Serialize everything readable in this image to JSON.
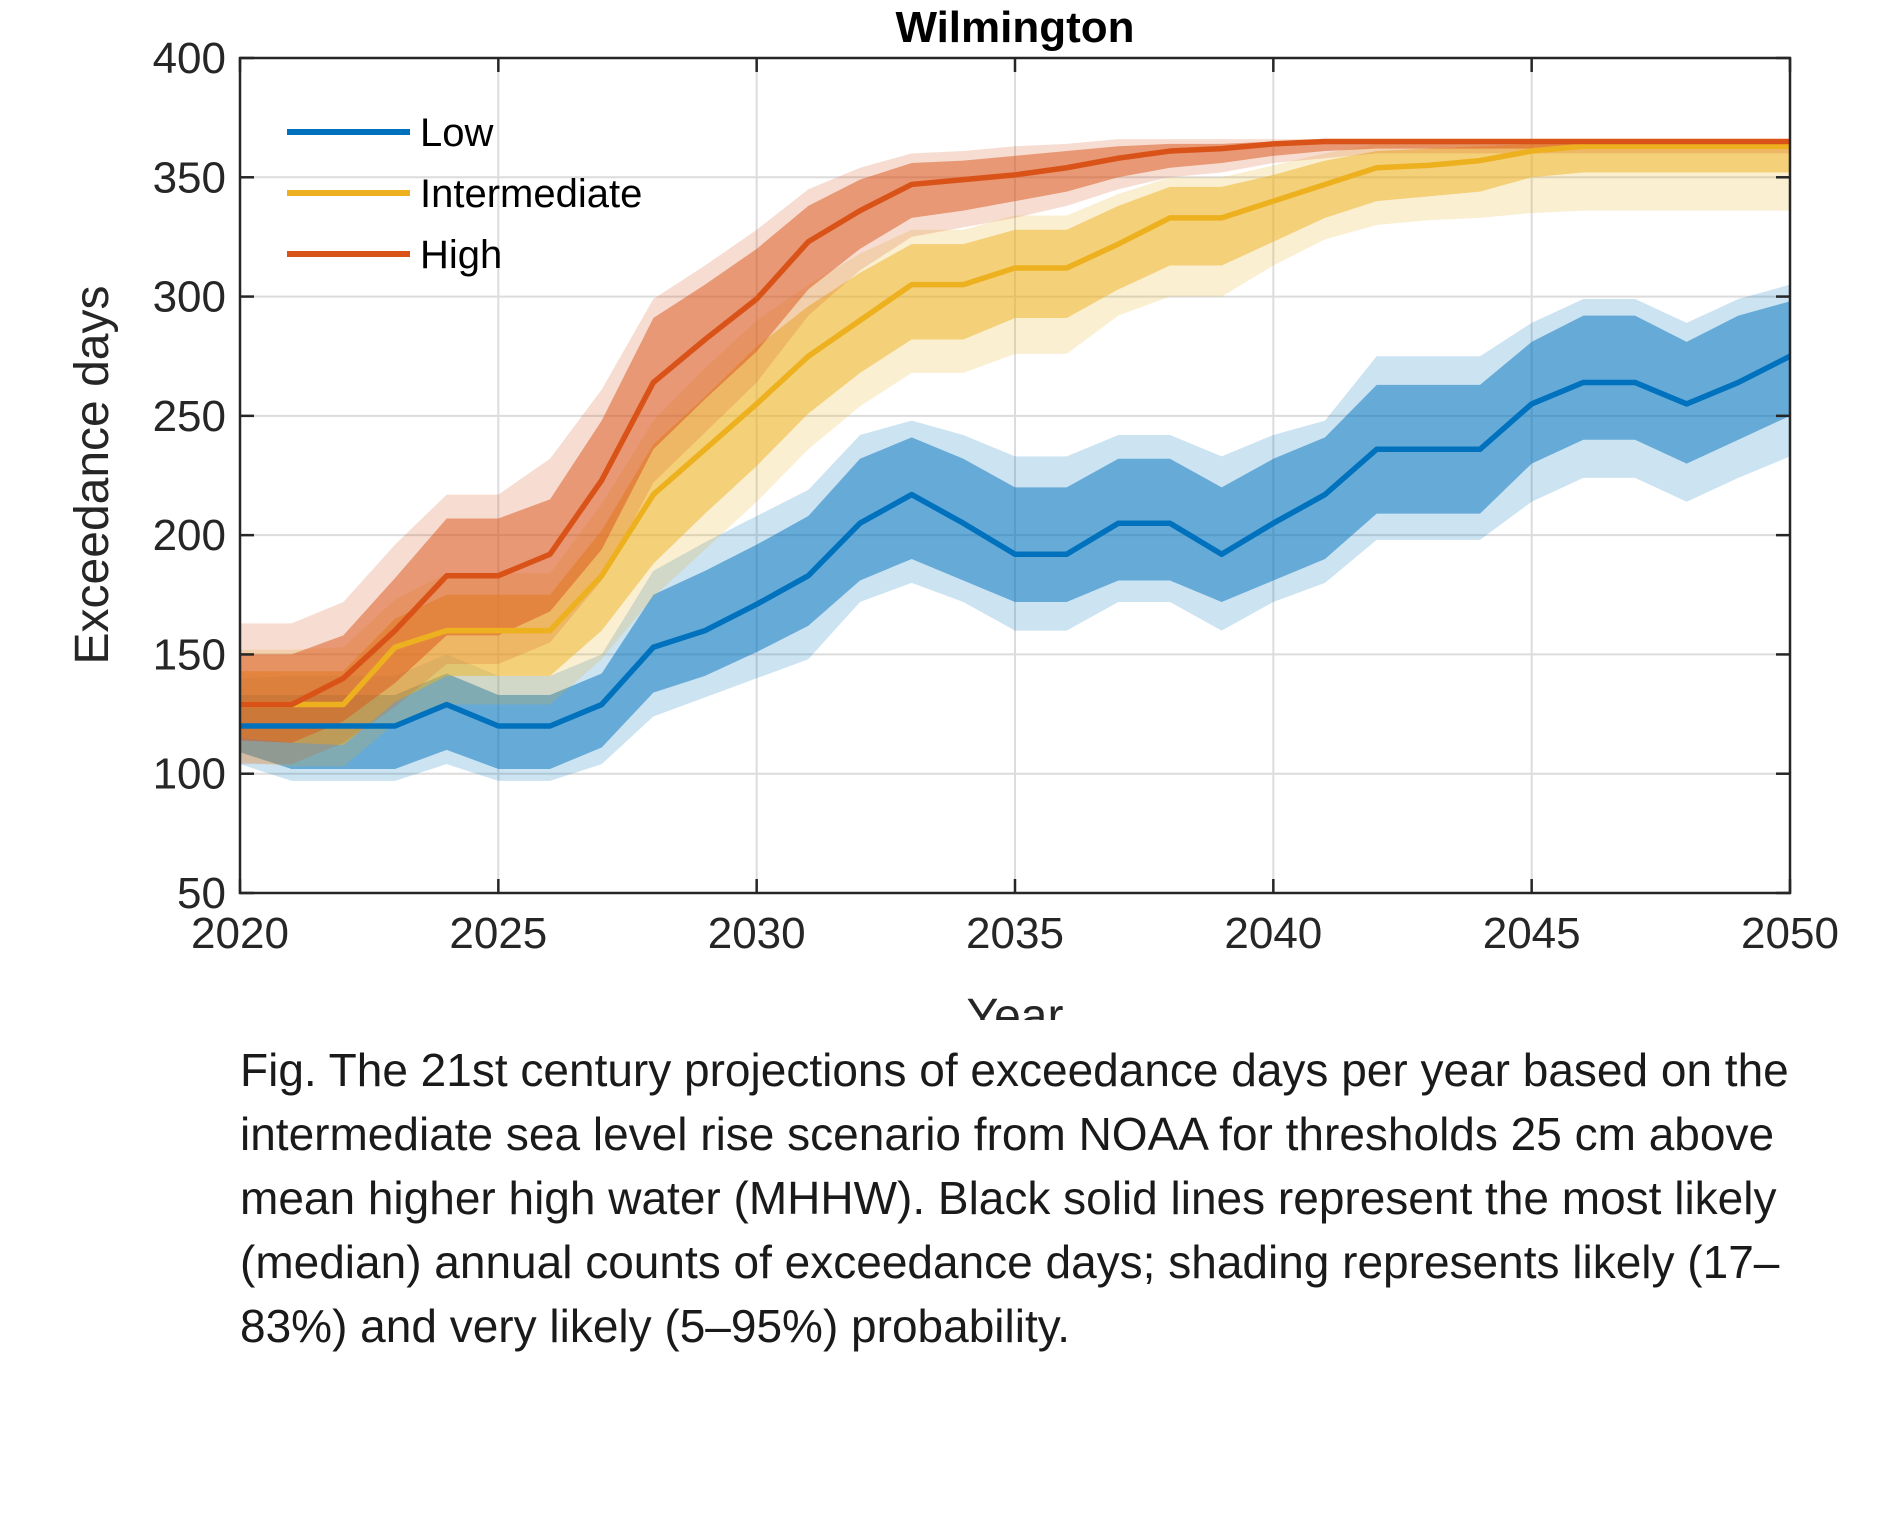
{
  "chart_data": {
    "type": "area",
    "title": "Wilmington",
    "xlabel": "Year",
    "ylabel": "Exceedance days",
    "xlim": [
      2020,
      2050
    ],
    "ylim": [
      50,
      400
    ],
    "xticks": [
      2020,
      2025,
      2030,
      2035,
      2040,
      2045,
      2050
    ],
    "yticks": [
      50,
      100,
      150,
      200,
      250,
      300,
      350,
      400
    ],
    "grid": true,
    "legend_position": "top-left",
    "x": [
      2020,
      2021,
      2022,
      2023,
      2024,
      2025,
      2026,
      2027,
      2028,
      2029,
      2030,
      2031,
      2032,
      2033,
      2034,
      2035,
      2036,
      2037,
      2038,
      2039,
      2040,
      2041,
      2042,
      2043,
      2044,
      2045,
      2046,
      2047,
      2048,
      2049,
      2050
    ],
    "series": [
      {
        "name": "Low",
        "color": "#0072BD",
        "median": [
          120,
          120,
          120,
          120,
          129,
          120,
          120,
          129,
          153,
          160,
          171,
          183,
          205,
          217,
          205,
          192,
          192,
          205,
          205,
          192,
          205,
          217,
          236,
          236,
          236,
          255,
          264,
          264,
          255,
          264,
          275
        ],
        "likely_low": [
          109,
          102,
          102,
          102,
          110,
          102,
          102,
          111,
          134,
          141,
          151,
          162,
          181,
          190,
          181,
          172,
          172,
          181,
          181,
          172,
          181,
          190,
          209,
          209,
          209,
          230,
          240,
          240,
          230,
          240,
          250
        ],
        "likely_high": [
          133,
          133,
          133,
          133,
          142,
          133,
          133,
          142,
          175,
          185,
          196,
          208,
          232,
          241,
          232,
          220,
          220,
          232,
          232,
          220,
          232,
          241,
          263,
          263,
          263,
          281,
          292,
          292,
          281,
          292,
          298
        ],
        "very_likely_low": [
          104,
          97,
          97,
          97,
          104,
          97,
          97,
          104,
          124,
          132,
          140,
          148,
          172,
          180,
          172,
          160,
          160,
          172,
          172,
          160,
          172,
          180,
          198,
          198,
          198,
          214,
          224,
          224,
          214,
          224,
          233
        ],
        "very_likely_high": [
          140,
          141,
          141,
          141,
          150,
          141,
          141,
          150,
          185,
          197,
          208,
          219,
          242,
          248,
          242,
          233,
          233,
          242,
          242,
          233,
          242,
          248,
          275,
          275,
          275,
          289,
          299,
          299,
          289,
          299,
          305
        ]
      },
      {
        "name": "Intermediate",
        "color": "#EDB120",
        "median": [
          129,
          129,
          129,
          153,
          160,
          160,
          160,
          183,
          217,
          236,
          255,
          275,
          290,
          305,
          305,
          312,
          312,
          322,
          333,
          333,
          340,
          347,
          354,
          355,
          357,
          361,
          363,
          363,
          363,
          363,
          363
        ],
        "likely_low": [
          115,
          113,
          112,
          130,
          141,
          141,
          141,
          160,
          188,
          209,
          229,
          251,
          268,
          282,
          282,
          291,
          291,
          303,
          313,
          313,
          323,
          333,
          340,
          342,
          344,
          350,
          352,
          352,
          352,
          352,
          352
        ],
        "likely_high": [
          143,
          143,
          143,
          165,
          175,
          175,
          175,
          202,
          238,
          258,
          279,
          296,
          310,
          322,
          322,
          328,
          328,
          338,
          346,
          346,
          351,
          357,
          361,
          362,
          363,
          364,
          364,
          364,
          364,
          364,
          364
        ],
        "very_likely_low": [
          105,
          103,
          103,
          121,
          129,
          129,
          129,
          148,
          174,
          194,
          214,
          236,
          254,
          268,
          268,
          276,
          276,
          292,
          300,
          300,
          313,
          324,
          330,
          332,
          333,
          335,
          336,
          336,
          336,
          336,
          336
        ],
        "very_likely_high": [
          152,
          152,
          153,
          173,
          184,
          184,
          184,
          213,
          248,
          270,
          290,
          305,
          318,
          328,
          328,
          334,
          334,
          343,
          350,
          350,
          355,
          360,
          364,
          365,
          365,
          366,
          366,
          366,
          366,
          366,
          366
        ]
      },
      {
        "name": "High",
        "color": "#D95319",
        "median": [
          129,
          129,
          140,
          160,
          183,
          183,
          192,
          223,
          264,
          282,
          299,
          323,
          336,
          347,
          349,
          351,
          354,
          358,
          361,
          362,
          364,
          365,
          365,
          365,
          365,
          365,
          365,
          365,
          365,
          365,
          365
        ],
        "likely_low": [
          114,
          113,
          122,
          138,
          158,
          158,
          168,
          194,
          236,
          257,
          277,
          303,
          320,
          333,
          336,
          340,
          344,
          350,
          354,
          356,
          359,
          361,
          362,
          362,
          362,
          362,
          362,
          362,
          362,
          362,
          362
        ],
        "likely_high": [
          150,
          150,
          158,
          182,
          207,
          207,
          215,
          248,
          291,
          305,
          320,
          338,
          349,
          356,
          357,
          359,
          361,
          363,
          364,
          364,
          365,
          365,
          365,
          365,
          365,
          365,
          365,
          365,
          365,
          365,
          365
        ],
        "very_likely_low": [
          104,
          104,
          113,
          128,
          146,
          146,
          155,
          181,
          222,
          243,
          264,
          292,
          311,
          325,
          329,
          333,
          338,
          345,
          350,
          352,
          356,
          358,
          360,
          360,
          360,
          360,
          360,
          360,
          360,
          360,
          360
        ],
        "very_likely_high": [
          163,
          163,
          172,
          196,
          217,
          217,
          232,
          261,
          299,
          313,
          328,
          345,
          354,
          360,
          361,
          363,
          364,
          366,
          366,
          366,
          366,
          366,
          366,
          366,
          366,
          366,
          366,
          366,
          366,
          366,
          366
        ]
      }
    ]
  },
  "caption": "Fig. The 21st century projections of exceedance days per year based on the intermediate sea level rise scenario from NOAA for thresholds 25 cm above mean higher high water (MHHW). Black solid lines represent the most likely (median) annual counts of exceedance days; shading represents likely (17–83%) and very likely (5–95%) probability."
}
